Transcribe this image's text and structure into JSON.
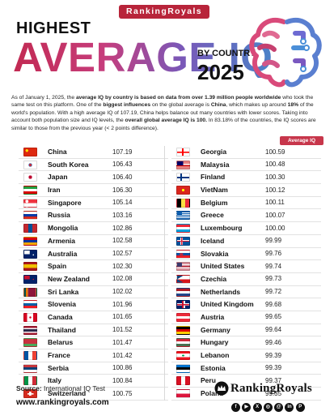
{
  "brand": "RankingRoyals",
  "title": {
    "line1": "HIGHEST",
    "line2": "AVERAGE IQ",
    "by": "BY COUNTRY",
    "year": "2025"
  },
  "intro": {
    "p1": "As of January 1, 2025, the ",
    "b1": "average IQ by country is based on data from over 1.39 million people worldwide",
    "p2": " who took the same test on this platform. One of the ",
    "b2": "biggest influences",
    "p3": " on the global average is ",
    "b3": "China",
    "p4": ", which makes up around ",
    "b4": "18%",
    "p5": " of the world's population. With a high average IQ of 107.19, China helps balance out many countries with lower scores. Taking into account both population size and IQ levels, the ",
    "b5": "overall global average IQ is 100.",
    "p6": " In 83.18% of the countries, the IQ scores are similar to those from the previous year (< 2 points difference)."
  },
  "column_header": "Average IQ",
  "left_rows": [
    {
      "country": "China",
      "iq": "107.19",
      "flag": "china"
    },
    {
      "country": "South Korea",
      "iq": "106.43",
      "flag": "south-korea"
    },
    {
      "country": "Japan",
      "iq": "106.40",
      "flag": "japan"
    },
    {
      "country": "Iran",
      "iq": "106.30",
      "flag": "iran"
    },
    {
      "country": "Singapore",
      "iq": "105.14",
      "flag": "singapore"
    },
    {
      "country": "Russia",
      "iq": "103.16",
      "flag": "russia"
    },
    {
      "country": "Mongolia",
      "iq": "102.86",
      "flag": "mongolia"
    },
    {
      "country": "Armenia",
      "iq": "102.58",
      "flag": "armenia"
    },
    {
      "country": "Australia",
      "iq": "102.57",
      "flag": "australia"
    },
    {
      "country": "Spain",
      "iq": "102.30",
      "flag": "spain"
    },
    {
      "country": "New Zealand",
      "iq": "102.08",
      "flag": "new-zealand"
    },
    {
      "country": "Sri Lanka",
      "iq": "102.02",
      "flag": "sri-lanka"
    },
    {
      "country": "Slovenia",
      "iq": "101.96",
      "flag": "slovenia"
    },
    {
      "country": "Canada",
      "iq": "101.65",
      "flag": "canada"
    },
    {
      "country": "Thailand",
      "iq": "101.52",
      "flag": "thailand"
    },
    {
      "country": "Belarus",
      "iq": "101.47",
      "flag": "belarus"
    },
    {
      "country": "France",
      "iq": "101.42",
      "flag": "france"
    },
    {
      "country": "Serbia",
      "iq": "100.86",
      "flag": "serbia"
    },
    {
      "country": "Italy",
      "iq": "100.84",
      "flag": "italy"
    },
    {
      "country": "Switzerland",
      "iq": "100.75",
      "flag": "switzerland"
    }
  ],
  "right_rows": [
    {
      "country": "Georgia",
      "iq": "100.59",
      "flag": "georgia"
    },
    {
      "country": "Malaysia",
      "iq": "100.48",
      "flag": "malaysia"
    },
    {
      "country": "Finland",
      "iq": "100.30",
      "flag": "finland"
    },
    {
      "country": "VietNam",
      "iq": "100.12",
      "flag": "vietnam"
    },
    {
      "country": "Belgium",
      "iq": "100.11",
      "flag": "belgium"
    },
    {
      "country": "Greece",
      "iq": "100.07",
      "flag": "greece"
    },
    {
      "country": "Luxembourg",
      "iq": "100.00",
      "flag": "luxembourg"
    },
    {
      "country": "Iceland",
      "iq": "99.99",
      "flag": "iceland"
    },
    {
      "country": "Slovakia",
      "iq": "99.76",
      "flag": "slovakia"
    },
    {
      "country": "United States",
      "iq": "99.74",
      "flag": "united-states"
    },
    {
      "country": "Czechia",
      "iq": "99.73",
      "flag": "czechia"
    },
    {
      "country": "Netherlands",
      "iq": "99.72",
      "flag": "netherlands"
    },
    {
      "country": "United Kingdom",
      "iq": "99.68",
      "flag": "united-kingdom"
    },
    {
      "country": "Austria",
      "iq": "99.65",
      "flag": "austria"
    },
    {
      "country": "Germany",
      "iq": "99.64",
      "flag": "germany"
    },
    {
      "country": "Hungary",
      "iq": "99.46",
      "flag": "hungary"
    },
    {
      "country": "Lebanon",
      "iq": "99.39",
      "flag": "lebanon"
    },
    {
      "country": "Estonia",
      "iq": "99.39",
      "flag": "estonia"
    },
    {
      "country": "Peru",
      "iq": "99.37",
      "flag": "peru"
    },
    {
      "country": "Poland",
      "iq": "99.35",
      "flag": "poland"
    }
  ],
  "footer": {
    "source_label": "Source:",
    "source_value": " International IQ Test",
    "website": "www.rankingroyals.com",
    "brand_name": "RankingRoyals",
    "social_icons": [
      "facebook-icon",
      "youtube-icon",
      "x-icon",
      "instagram-icon",
      "threads-icon",
      "linkedin-icon",
      "pinterest-icon"
    ]
  },
  "colors": {
    "brand_red": "#b8243a",
    "accent_pink": "#c63d7c",
    "accent_purple": "#7a58b8",
    "accent_blue": "#4a82c8"
  }
}
